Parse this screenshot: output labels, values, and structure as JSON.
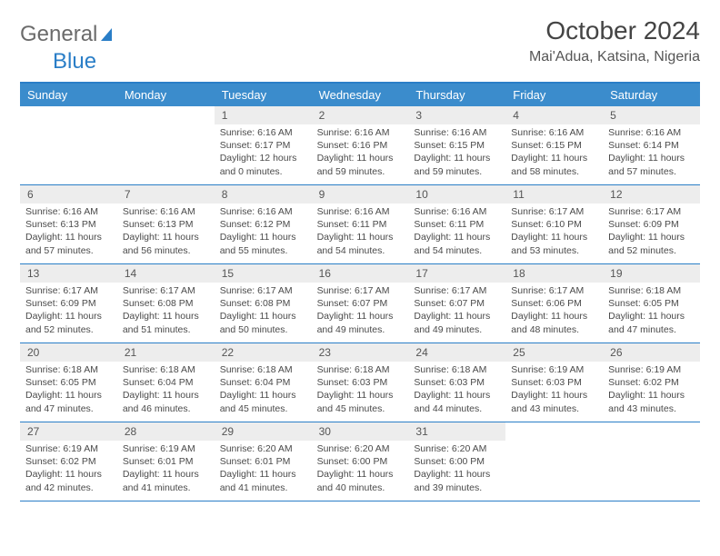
{
  "logo": {
    "word1": "General",
    "word2": "Blue"
  },
  "title": "October 2024",
  "location": "Mai'Adua, Katsina, Nigeria",
  "colors": {
    "header_bg": "#3b8ccc",
    "border": "#2a7ec7",
    "daynum_bg": "#ededed",
    "text": "#4a4a4a"
  },
  "day_names": [
    "Sunday",
    "Monday",
    "Tuesday",
    "Wednesday",
    "Thursday",
    "Friday",
    "Saturday"
  ],
  "weeks": [
    [
      null,
      null,
      {
        "n": "1",
        "sr": "Sunrise: 6:16 AM",
        "ss": "Sunset: 6:17 PM",
        "d1": "Daylight: 12 hours",
        "d2": "and 0 minutes."
      },
      {
        "n": "2",
        "sr": "Sunrise: 6:16 AM",
        "ss": "Sunset: 6:16 PM",
        "d1": "Daylight: 11 hours",
        "d2": "and 59 minutes."
      },
      {
        "n": "3",
        "sr": "Sunrise: 6:16 AM",
        "ss": "Sunset: 6:15 PM",
        "d1": "Daylight: 11 hours",
        "d2": "and 59 minutes."
      },
      {
        "n": "4",
        "sr": "Sunrise: 6:16 AM",
        "ss": "Sunset: 6:15 PM",
        "d1": "Daylight: 11 hours",
        "d2": "and 58 minutes."
      },
      {
        "n": "5",
        "sr": "Sunrise: 6:16 AM",
        "ss": "Sunset: 6:14 PM",
        "d1": "Daylight: 11 hours",
        "d2": "and 57 minutes."
      }
    ],
    [
      {
        "n": "6",
        "sr": "Sunrise: 6:16 AM",
        "ss": "Sunset: 6:13 PM",
        "d1": "Daylight: 11 hours",
        "d2": "and 57 minutes."
      },
      {
        "n": "7",
        "sr": "Sunrise: 6:16 AM",
        "ss": "Sunset: 6:13 PM",
        "d1": "Daylight: 11 hours",
        "d2": "and 56 minutes."
      },
      {
        "n": "8",
        "sr": "Sunrise: 6:16 AM",
        "ss": "Sunset: 6:12 PM",
        "d1": "Daylight: 11 hours",
        "d2": "and 55 minutes."
      },
      {
        "n": "9",
        "sr": "Sunrise: 6:16 AM",
        "ss": "Sunset: 6:11 PM",
        "d1": "Daylight: 11 hours",
        "d2": "and 54 minutes."
      },
      {
        "n": "10",
        "sr": "Sunrise: 6:16 AM",
        "ss": "Sunset: 6:11 PM",
        "d1": "Daylight: 11 hours",
        "d2": "and 54 minutes."
      },
      {
        "n": "11",
        "sr": "Sunrise: 6:17 AM",
        "ss": "Sunset: 6:10 PM",
        "d1": "Daylight: 11 hours",
        "d2": "and 53 minutes."
      },
      {
        "n": "12",
        "sr": "Sunrise: 6:17 AM",
        "ss": "Sunset: 6:09 PM",
        "d1": "Daylight: 11 hours",
        "d2": "and 52 minutes."
      }
    ],
    [
      {
        "n": "13",
        "sr": "Sunrise: 6:17 AM",
        "ss": "Sunset: 6:09 PM",
        "d1": "Daylight: 11 hours",
        "d2": "and 52 minutes."
      },
      {
        "n": "14",
        "sr": "Sunrise: 6:17 AM",
        "ss": "Sunset: 6:08 PM",
        "d1": "Daylight: 11 hours",
        "d2": "and 51 minutes."
      },
      {
        "n": "15",
        "sr": "Sunrise: 6:17 AM",
        "ss": "Sunset: 6:08 PM",
        "d1": "Daylight: 11 hours",
        "d2": "and 50 minutes."
      },
      {
        "n": "16",
        "sr": "Sunrise: 6:17 AM",
        "ss": "Sunset: 6:07 PM",
        "d1": "Daylight: 11 hours",
        "d2": "and 49 minutes."
      },
      {
        "n": "17",
        "sr": "Sunrise: 6:17 AM",
        "ss": "Sunset: 6:07 PM",
        "d1": "Daylight: 11 hours",
        "d2": "and 49 minutes."
      },
      {
        "n": "18",
        "sr": "Sunrise: 6:17 AM",
        "ss": "Sunset: 6:06 PM",
        "d1": "Daylight: 11 hours",
        "d2": "and 48 minutes."
      },
      {
        "n": "19",
        "sr": "Sunrise: 6:18 AM",
        "ss": "Sunset: 6:05 PM",
        "d1": "Daylight: 11 hours",
        "d2": "and 47 minutes."
      }
    ],
    [
      {
        "n": "20",
        "sr": "Sunrise: 6:18 AM",
        "ss": "Sunset: 6:05 PM",
        "d1": "Daylight: 11 hours",
        "d2": "and 47 minutes."
      },
      {
        "n": "21",
        "sr": "Sunrise: 6:18 AM",
        "ss": "Sunset: 6:04 PM",
        "d1": "Daylight: 11 hours",
        "d2": "and 46 minutes."
      },
      {
        "n": "22",
        "sr": "Sunrise: 6:18 AM",
        "ss": "Sunset: 6:04 PM",
        "d1": "Daylight: 11 hours",
        "d2": "and 45 minutes."
      },
      {
        "n": "23",
        "sr": "Sunrise: 6:18 AM",
        "ss": "Sunset: 6:03 PM",
        "d1": "Daylight: 11 hours",
        "d2": "and 45 minutes."
      },
      {
        "n": "24",
        "sr": "Sunrise: 6:18 AM",
        "ss": "Sunset: 6:03 PM",
        "d1": "Daylight: 11 hours",
        "d2": "and 44 minutes."
      },
      {
        "n": "25",
        "sr": "Sunrise: 6:19 AM",
        "ss": "Sunset: 6:03 PM",
        "d1": "Daylight: 11 hours",
        "d2": "and 43 minutes."
      },
      {
        "n": "26",
        "sr": "Sunrise: 6:19 AM",
        "ss": "Sunset: 6:02 PM",
        "d1": "Daylight: 11 hours",
        "d2": "and 43 minutes."
      }
    ],
    [
      {
        "n": "27",
        "sr": "Sunrise: 6:19 AM",
        "ss": "Sunset: 6:02 PM",
        "d1": "Daylight: 11 hours",
        "d2": "and 42 minutes."
      },
      {
        "n": "28",
        "sr": "Sunrise: 6:19 AM",
        "ss": "Sunset: 6:01 PM",
        "d1": "Daylight: 11 hours",
        "d2": "and 41 minutes."
      },
      {
        "n": "29",
        "sr": "Sunrise: 6:20 AM",
        "ss": "Sunset: 6:01 PM",
        "d1": "Daylight: 11 hours",
        "d2": "and 41 minutes."
      },
      {
        "n": "30",
        "sr": "Sunrise: 6:20 AM",
        "ss": "Sunset: 6:00 PM",
        "d1": "Daylight: 11 hours",
        "d2": "and 40 minutes."
      },
      {
        "n": "31",
        "sr": "Sunrise: 6:20 AM",
        "ss": "Sunset: 6:00 PM",
        "d1": "Daylight: 11 hours",
        "d2": "and 39 minutes."
      },
      null,
      null
    ]
  ]
}
